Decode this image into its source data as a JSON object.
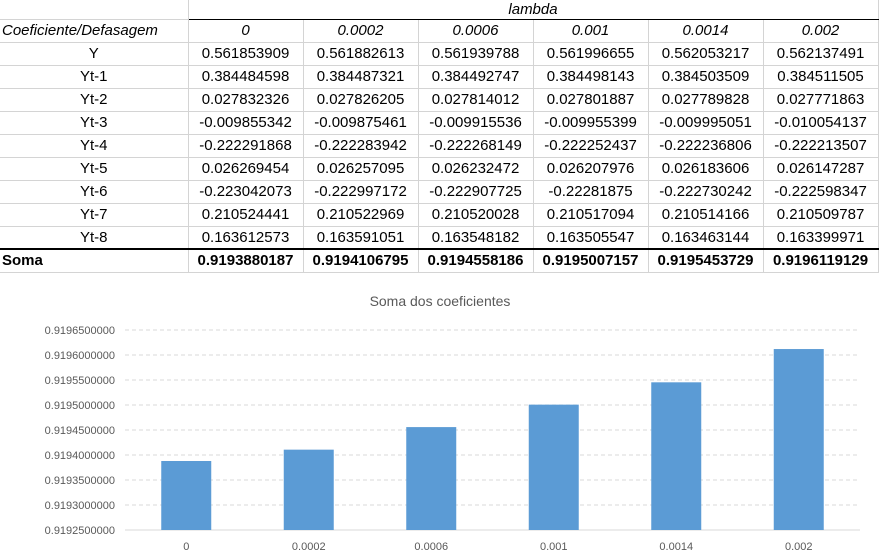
{
  "table": {
    "group_header": "lambda",
    "corner_label": "Coeficiente/Defasagem",
    "lambdas": [
      "0",
      "0.0002",
      "0.0006",
      "0.001",
      "0.0014",
      "0.002"
    ],
    "rows": [
      {
        "label": "Y",
        "values": [
          "0.561853909",
          "0.561882613",
          "0.561939788",
          "0.561996655",
          "0.562053217",
          "0.562137491"
        ]
      },
      {
        "label": "Yt-1",
        "values": [
          "0.384484598",
          "0.384487321",
          "0.384492747",
          "0.384498143",
          "0.384503509",
          "0.384511505"
        ]
      },
      {
        "label": "Yt-2",
        "values": [
          "0.027832326",
          "0.027826205",
          "0.027814012",
          "0.027801887",
          "0.027789828",
          "0.027771863"
        ]
      },
      {
        "label": "Yt-3",
        "values": [
          "-0.009855342",
          "-0.009875461",
          "-0.009915536",
          "-0.009955399",
          "-0.009995051",
          "-0.010054137"
        ]
      },
      {
        "label": "Yt-4",
        "values": [
          "-0.222291868",
          "-0.222283942",
          "-0.222268149",
          "-0.222252437",
          "-0.222236806",
          "-0.222213507"
        ]
      },
      {
        "label": "Yt-5",
        "values": [
          "0.026269454",
          "0.026257095",
          "0.026232472",
          "0.026207976",
          "0.026183606",
          "0.026147287"
        ]
      },
      {
        "label": "Yt-6",
        "values": [
          "-0.223042073",
          "-0.222997172",
          "-0.222907725",
          "-0.22281875",
          "-0.222730242",
          "-0.222598347"
        ]
      },
      {
        "label": "Yt-7",
        "values": [
          "0.210524441",
          "0.210522969",
          "0.210520028",
          "0.210517094",
          "0.210514166",
          "0.210509787"
        ]
      },
      {
        "label": "Yt-8",
        "values": [
          "0.163612573",
          "0.163591051",
          "0.163548182",
          "0.163505547",
          "0.163463144",
          "0.163399971"
        ]
      }
    ],
    "sum_label": "Soma",
    "sum_values": [
      "0.9193880187",
      "0.9194106795",
      "0.9194558186",
      "0.9195007157",
      "0.9195453729",
      "0.9196119129"
    ]
  },
  "chart_data": {
    "type": "bar",
    "title": "Soma dos coeficientes",
    "categories": [
      "0",
      "0.0002",
      "0.0006",
      "0.001",
      "0.0014",
      "0.002"
    ],
    "values": [
      0.9193880187,
      0.9194106795,
      0.9194558186,
      0.9195007157,
      0.9195453729,
      0.9196119129
    ],
    "ylim": [
      0.91925,
      0.91965
    ],
    "yticks": [
      "0.9192500000",
      "0.9193000000",
      "0.9193500000",
      "0.9194000000",
      "0.9194500000",
      "0.9195000000",
      "0.9195500000",
      "0.9196000000",
      "0.9196500000"
    ],
    "xlabel": "",
    "ylabel": "",
    "grid": true,
    "bar_color": "#5b9bd5",
    "grid_color": "#d9d9d9"
  }
}
